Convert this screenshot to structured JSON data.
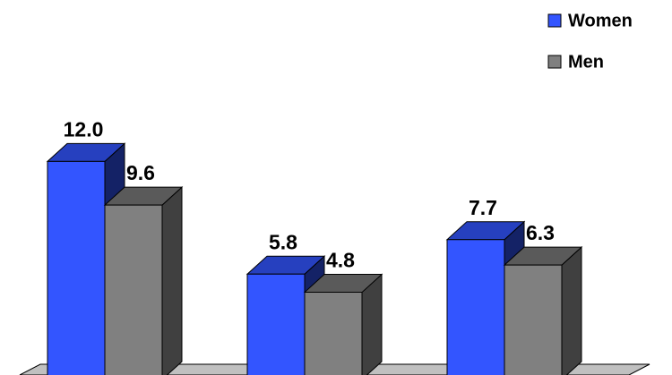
{
  "chart_data": {
    "type": "bar3d",
    "series": [
      {
        "name": "Women",
        "color": "#3355ff",
        "values": [
          12.0,
          5.8,
          7.7
        ],
        "value_labels": [
          "12.0",
          "5.8",
          "7.7"
        ]
      },
      {
        "name": "Men",
        "color": "#808080",
        "values": [
          9.6,
          4.8,
          6.3
        ],
        "value_labels": [
          "9.6",
          "4.8",
          "6.3"
        ]
      }
    ]
  }
}
